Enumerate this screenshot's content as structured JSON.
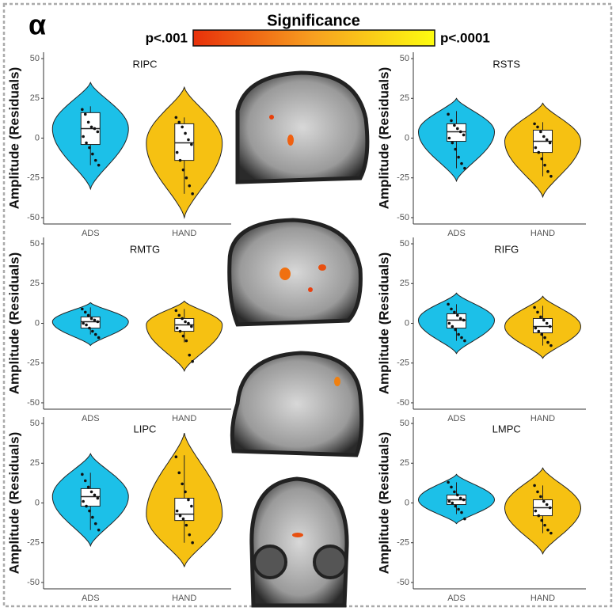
{
  "header": {
    "label": "α",
    "title": "Significance",
    "low": "p<.001",
    "high": "p<.0001"
  },
  "chart_data": [
    {
      "type": "violin",
      "title": "RIPC",
      "ylabel": "Amplitude (Residuals)",
      "categories": [
        "ADS",
        "HAND"
      ],
      "ylim": [
        -54,
        54
      ],
      "yticks": [
        -50,
        -25,
        0,
        25,
        50
      ],
      "groups": [
        {
          "color": "#1cc0e8",
          "range": [
            -32,
            35
          ],
          "box": [
            -4,
            6,
            16
          ],
          "whiskers": [
            -17,
            20
          ],
          "points": [
            18,
            15,
            10,
            7,
            6,
            4,
            1,
            -3,
            -6,
            -10,
            -14,
            -17
          ]
        },
        {
          "color": "#f6c112",
          "range": [
            -50,
            32
          ],
          "box": [
            -14,
            -3,
            9
          ],
          "whiskers": [
            -35,
            13
          ],
          "points": [
            13,
            10,
            7,
            3,
            -1,
            -4,
            -9,
            -14,
            -20,
            -25,
            -30,
            -35
          ]
        }
      ]
    },
    {
      "type": "violin",
      "title": "RSTS",
      "ylabel": "Amplitude (Residuals)",
      "categories": [
        "ADS",
        "HAND"
      ],
      "ylim": [
        -54,
        54
      ],
      "yticks": [
        -50,
        -25,
        0,
        25,
        50
      ],
      "groups": [
        {
          "color": "#1cc0e8",
          "range": [
            -27,
            25
          ],
          "box": [
            -2,
            4,
            9
          ],
          "whiskers": [
            -19,
            17
          ],
          "points": [
            15,
            11,
            8,
            6,
            4,
            2,
            0,
            -3,
            -7,
            -12,
            -16,
            -19
          ]
        },
        {
          "color": "#f6c112",
          "range": [
            -37,
            22
          ],
          "box": [
            -9,
            -2,
            5
          ],
          "whiskers": [
            -24,
            10
          ],
          "points": [
            9,
            7,
            4,
            1,
            -1,
            -3,
            -6,
            -9,
            -13,
            -17,
            -21,
            -24
          ]
        }
      ]
    },
    {
      "type": "violin",
      "title": "RMTG",
      "ylabel": "Amplitude (Residuals)",
      "categories": [
        "ADS",
        "HAND"
      ],
      "ylim": [
        -54,
        54
      ],
      "yticks": [
        -50,
        -25,
        0,
        25,
        50
      ],
      "groups": [
        {
          "color": "#1cc0e8",
          "range": [
            -14,
            13
          ],
          "box": [
            -3,
            1,
            4
          ],
          "whiskers": [
            -7,
            10
          ],
          "points": [
            9,
            7,
            5,
            3,
            2,
            1,
            0,
            -1,
            -3,
            -5,
            -7,
            -9
          ]
        },
        {
          "color": "#f6c112",
          "range": [
            -30,
            14
          ],
          "box": [
            -5,
            -1,
            3
          ],
          "whiskers": [
            -12,
            9
          ],
          "points": [
            8,
            5,
            3,
            1,
            0,
            -2,
            -3,
            -5,
            -8,
            -11,
            -20,
            -24
          ]
        }
      ]
    },
    {
      "type": "violin",
      "title": "RIFG",
      "ylabel": "Amplitude (Residuals)",
      "categories": [
        "ADS",
        "HAND"
      ],
      "ylim": [
        -54,
        54
      ],
      "yticks": [
        -50,
        -25,
        0,
        25,
        50
      ],
      "groups": [
        {
          "color": "#1cc0e8",
          "range": [
            -19,
            19
          ],
          "box": [
            -3,
            2,
            6
          ],
          "whiskers": [
            -11,
            12
          ],
          "points": [
            12,
            9,
            7,
            5,
            3,
            2,
            0,
            -2,
            -4,
            -7,
            -9,
            -11
          ]
        },
        {
          "color": "#f6c112",
          "range": [
            -22,
            17
          ],
          "box": [
            -6,
            -2,
            3
          ],
          "whiskers": [
            -14,
            11
          ],
          "points": [
            10,
            7,
            4,
            2,
            0,
            -2,
            -3,
            -5,
            -7,
            -9,
            -12,
            -14
          ]
        }
      ]
    },
    {
      "type": "violin",
      "title": "LIPC",
      "ylabel": "Amplitude (Residuals)",
      "categories": [
        "ADS",
        "HAND"
      ],
      "ylim": [
        -54,
        54
      ],
      "yticks": [
        -50,
        -25,
        0,
        25,
        50
      ],
      "groups": [
        {
          "color": "#1cc0e8",
          "range": [
            -27,
            31
          ],
          "box": [
            -2,
            4,
            9
          ],
          "whiskers": [
            -17,
            19
          ],
          "points": [
            18,
            14,
            10,
            7,
            5,
            3,
            1,
            -2,
            -5,
            -9,
            -13,
            -17
          ]
        },
        {
          "color": "#f6c112",
          "range": [
            -40,
            44
          ],
          "box": [
            -11,
            -7,
            3
          ],
          "whiskers": [
            -25,
            30
          ],
          "points": [
            29,
            19,
            12,
            7,
            2,
            -2,
            -5,
            -8,
            -10,
            -14,
            -20,
            -25
          ]
        }
      ]
    },
    {
      "type": "violin",
      "title": "LMPC",
      "ylabel": "Amplitude (Residuals)",
      "categories": [
        "ADS",
        "HAND"
      ],
      "ylim": [
        -54,
        54
      ],
      "yticks": [
        -50,
        -25,
        0,
        25,
        50
      ],
      "groups": [
        {
          "color": "#1cc0e8",
          "range": [
            -13,
            18
          ],
          "box": [
            -1,
            2,
            5
          ],
          "whiskers": [
            -7,
            13
          ],
          "points": [
            13,
            10,
            7,
            5,
            3,
            2,
            1,
            0,
            -2,
            -4,
            -6,
            -10
          ]
        },
        {
          "color": "#f6c112",
          "range": [
            -32,
            22
          ],
          "box": [
            -8,
            -3,
            2
          ],
          "whiskers": [
            -19,
            11
          ],
          "points": [
            11,
            7,
            4,
            1,
            -1,
            -3,
            -5,
            -8,
            -11,
            -14,
            -17,
            -19
          ]
        }
      ]
    }
  ]
}
